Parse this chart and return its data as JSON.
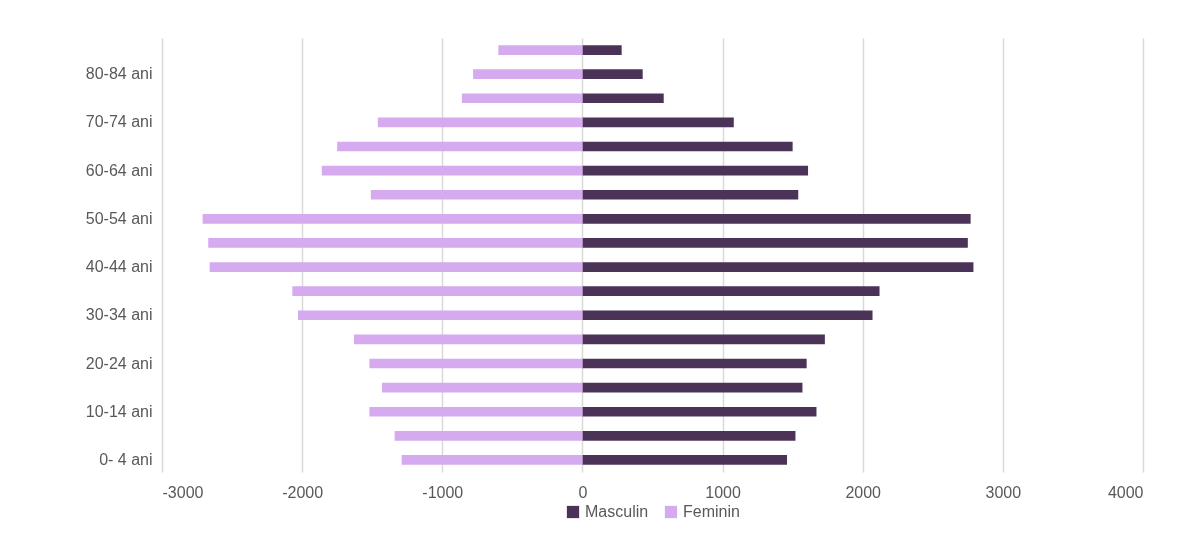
{
  "chart_data": {
    "type": "bar",
    "orientation": "horizontal",
    "stacked": true,
    "categories": [
      null,
      "80-84 ani",
      null,
      "70-74 ani",
      null,
      "60-64 ani",
      null,
      "50-54 ani",
      null,
      "40-44 ani",
      null,
      "30-34 ani",
      null,
      "20-24 ani",
      null,
      "10-14 ani",
      null,
      "0- 4 ani"
    ],
    "series": [
      {
        "name": "Masculin",
        "color": "#4b3358",
        "values": [
          280,
          430,
          580,
          1080,
          1500,
          1610,
          1540,
          2770,
          2750,
          2790,
          2120,
          2070,
          1730,
          1600,
          1570,
          1670,
          1520,
          1460
        ]
      },
      {
        "name": "Feminin",
        "color": "#d5aaef",
        "values": [
          -600,
          -780,
          -860,
          -1460,
          -1750,
          -1860,
          -1510,
          -2710,
          -2670,
          -2660,
          -2070,
          -2030,
          -1630,
          -1520,
          -1430,
          -1520,
          -1340,
          -1290
        ]
      }
    ],
    "xlim": [
      -3000,
      4000
    ],
    "xticks": [
      -3000,
      -2000,
      -1000,
      0,
      1000,
      2000,
      3000,
      4000
    ],
    "grid": "x",
    "legend": "bottom"
  }
}
